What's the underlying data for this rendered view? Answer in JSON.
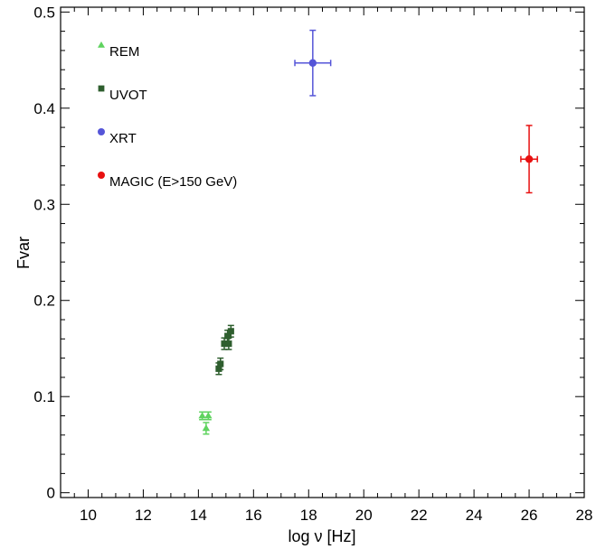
{
  "chart_data": {
    "type": "scatter",
    "xlabel": "log ν [Hz]",
    "ylabel": "Fvar",
    "xlim": [
      9,
      28
    ],
    "ylim": [
      -0.005,
      0.505
    ],
    "x_ticks": [
      10,
      12,
      14,
      16,
      18,
      20,
      22,
      24,
      26,
      28
    ],
    "x_tick_labels": [
      "10",
      "12",
      "14",
      "16",
      "18",
      "20",
      "22",
      "24",
      "26",
      "28"
    ],
    "y_ticks": [
      0,
      0.1,
      0.2,
      0.3,
      0.4,
      0.5
    ],
    "y_tick_labels": [
      "0",
      "0.1",
      "0.2",
      "0.3",
      "0.4",
      "0.5"
    ],
    "grid": false,
    "legend_position": "top-left",
    "series": [
      {
        "name": "REM",
        "marker": "triangle",
        "color": "#5fd35f",
        "points": [
          {
            "x": 14.14,
            "y": 0.08,
            "yerr": 0.004,
            "xerr": 0
          },
          {
            "x": 14.28,
            "y": 0.067,
            "yerr": 0.006,
            "xerr": 0
          },
          {
            "x": 14.36,
            "y": 0.08,
            "yerr": 0.004,
            "xerr": 0
          }
        ]
      },
      {
        "name": "UVOT",
        "marker": "square",
        "color": "#2e5e2e",
        "points": [
          {
            "x": 14.74,
            "y": 0.129,
            "yerr": 0.006,
            "xerr": 0
          },
          {
            "x": 14.8,
            "y": 0.134,
            "yerr": 0.006,
            "xerr": 0
          },
          {
            "x": 14.94,
            "y": 0.155,
            "yerr": 0.006,
            "xerr": 0
          },
          {
            "x": 15.06,
            "y": 0.163,
            "yerr": 0.006,
            "xerr": 0
          },
          {
            "x": 15.1,
            "y": 0.155,
            "yerr": 0.006,
            "xerr": 0
          },
          {
            "x": 15.18,
            "y": 0.168,
            "yerr": 0.006,
            "xerr": 0
          }
        ]
      },
      {
        "name": "XRT",
        "marker": "circle",
        "color": "#5555d8",
        "points": [
          {
            "x": 18.15,
            "y": 0.447,
            "yerr": 0.034,
            "xerr": 0.65
          }
        ]
      },
      {
        "name": "MAGIC (E>150 GeV)",
        "marker": "circle",
        "color": "#e81010",
        "points": [
          {
            "x": 26.0,
            "y": 0.347,
            "yerr": 0.035,
            "xerr": 0.3
          }
        ]
      }
    ]
  }
}
